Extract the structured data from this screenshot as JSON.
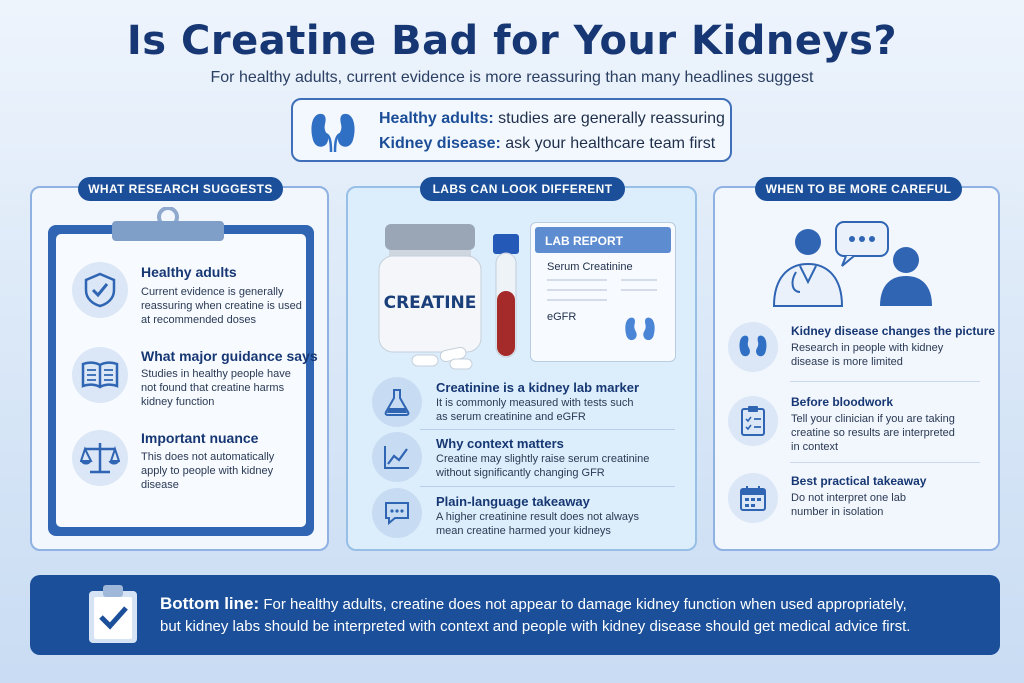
{
  "title": "Is Creatine Bad for Your Kidneys?",
  "subtitle": "For healthy adults, current evidence is more reassuring than many headlines suggest",
  "summary": {
    "line1_label": "Healthy adults:",
    "line1_text": " studies are generally reassuring",
    "line2_label": "Kidney disease:",
    "line2_text": " ask your healthcare team first"
  },
  "left": {
    "tag": "WHAT RESEARCH SUGGESTS",
    "items": [
      {
        "heading": "Healthy adults",
        "text": "Current evidence is generally reassuring when creatine is used at recommended doses",
        "icon": "shield-check-icon"
      },
      {
        "heading": "What major guidance says",
        "text": "Studies in healthy people have not found that creatine harms kidney function",
        "icon": "open-book-icon"
      },
      {
        "heading": "Important nuance",
        "text": "This does not automatically apply to people with kidney disease",
        "icon": "scales-icon"
      }
    ]
  },
  "middle": {
    "tag": "LABS CAN LOOK DIFFERENT",
    "jar_label": "CREATINE",
    "report": {
      "title": "LAB REPORT",
      "row1": "Serum Creatinine",
      "row2": "eGFR"
    },
    "items": [
      {
        "heading": "Creatinine is a kidney lab marker",
        "text": "It is commonly measured with tests such as serum creatinine and eGFR",
        "icon": "flask-icon"
      },
      {
        "heading": "Why context matters",
        "text": "Creatine may slightly raise serum creatinine without significantly changing GFR",
        "icon": "trend-chart-icon"
      },
      {
        "heading": "Plain-language takeaway",
        "text": "A higher creatinine result does not always mean creatine harmed your kidneys",
        "icon": "speech-bubble-icon"
      }
    ]
  },
  "right": {
    "tag": "WHEN TO BE MORE CAREFUL",
    "items": [
      {
        "heading": "Kidney disease changes the picture",
        "text": "Research in people with kidney disease is more limited",
        "icon": "kidneys-icon"
      },
      {
        "heading": "Before bloodwork",
        "text": "Tell your clinician if you are taking creatine so results are interpreted in context",
        "icon": "checklist-icon"
      },
      {
        "heading": "Best practical takeaway",
        "text": "Do not interpret one lab number in isolation",
        "icon": "calendar-icon"
      }
    ]
  },
  "bottom": {
    "label": "Bottom line:",
    "line1": " For healthy adults, creatine does not appear to damage kidney function when used appropriately,",
    "line2": "but kidney labs should be interpreted with context and people with kidney disease should get medical advice first."
  },
  "colors": {
    "primary": "#1b4f99",
    "title": "#163773",
    "accent_red": "#a52a2a"
  }
}
